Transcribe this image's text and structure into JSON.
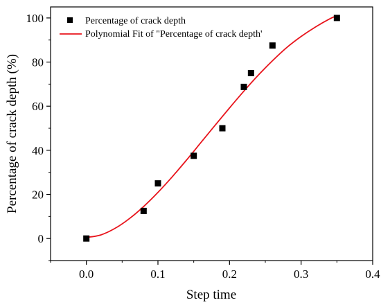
{
  "chart_data": {
    "type": "scatter",
    "xlabel": "Step time",
    "ylabel": "Percentage of crack depth (%)",
    "xlim": [
      -0.05,
      0.4
    ],
    "ylim": [
      -10,
      105
    ],
    "x_ticks": [
      0.0,
      0.1,
      0.2,
      0.3,
      0.4
    ],
    "x_tick_labels": [
      "0.0",
      "0.1",
      "0.2",
      "0.3",
      "0.4"
    ],
    "y_ticks": [
      0,
      20,
      40,
      60,
      80,
      100
    ],
    "y_tick_labels": [
      "0",
      "20",
      "40",
      "60",
      "80",
      "100"
    ],
    "grid": false,
    "legend_position": "top-left",
    "series": [
      {
        "name": "Percentage of crack depth",
        "kind": "scatter",
        "marker": "square",
        "color": "#000000",
        "x": [
          0.0,
          0.08,
          0.1,
          0.15,
          0.19,
          0.22,
          0.23,
          0.26,
          0.35
        ],
        "y": [
          0,
          12.5,
          25,
          37.5,
          50,
          68.75,
          75,
          87.5,
          100
        ]
      },
      {
        "name": "Polynomial Fit of \"Percentage of crack depth'",
        "kind": "line",
        "color": "#e8141c",
        "x": [
          0.0,
          0.02,
          0.04,
          0.06,
          0.08,
          0.1,
          0.12,
          0.14,
          0.16,
          0.18,
          0.2,
          0.22,
          0.24,
          0.26,
          0.28,
          0.3,
          0.32,
          0.34,
          0.35
        ],
        "y": [
          0.5,
          1.6,
          4.6,
          9.0,
          14.5,
          20.9,
          28.0,
          35.6,
          43.5,
          51.4,
          59.2,
          66.8,
          74.0,
          80.6,
          86.6,
          91.6,
          95.9,
          99.6,
          101.0
        ]
      }
    ]
  }
}
